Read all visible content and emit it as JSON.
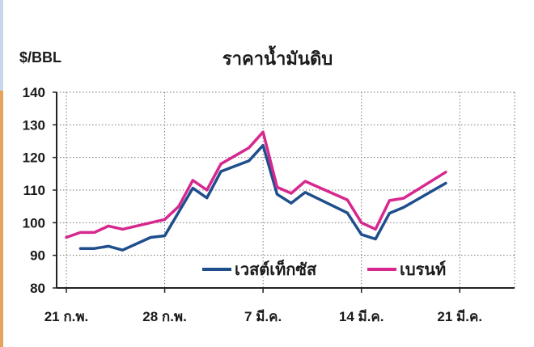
{
  "chart_data": {
    "type": "line",
    "title": "ราคาน้ำมันดิบ",
    "ylabel": "$/BBL",
    "xlabel": "",
    "ylim": [
      80,
      140
    ],
    "yticks": [
      80,
      90,
      100,
      110,
      120,
      130,
      140
    ],
    "xlim": [
      0,
      30
    ],
    "xticks": [
      {
        "x": 0,
        "label": "21 ก.พ."
      },
      {
        "x": 7,
        "label": "28 ก.พ."
      },
      {
        "x": 14,
        "label": "7 มี.ค."
      },
      {
        "x": 21,
        "label": "14 มี.ค."
      },
      {
        "x": 28,
        "label": "21 มี.ค."
      }
    ],
    "grid": true,
    "legend_position": "bottom-center",
    "series": [
      {
        "name": "เวสต์เท็กซัส",
        "color": "#1f4e8c",
        "points": [
          [
            1,
            92.1
          ],
          [
            2,
            92.1
          ],
          [
            3,
            92.8
          ],
          [
            4,
            91.6
          ],
          [
            6,
            95.5
          ],
          [
            7,
            96.0
          ],
          [
            9,
            110.6
          ],
          [
            10,
            107.6
          ],
          [
            11,
            115.7
          ],
          [
            13,
            119.0
          ],
          [
            14,
            123.7
          ],
          [
            15,
            108.7
          ],
          [
            16,
            106.0
          ],
          [
            17,
            109.3
          ],
          [
            20,
            103.0
          ],
          [
            21,
            96.4
          ],
          [
            22,
            95.0
          ],
          [
            23,
            102.9
          ],
          [
            24,
            104.7
          ],
          [
            27,
            112.1
          ]
        ]
      },
      {
        "name": "เบรนท์",
        "color": "#d6288e",
        "points": [
          [
            0,
            95.5
          ],
          [
            1,
            97.0
          ],
          [
            2,
            97.0
          ],
          [
            3,
            99.0
          ],
          [
            4,
            98.0
          ],
          [
            7,
            101.0
          ],
          [
            8,
            105.0
          ],
          [
            9,
            113.0
          ],
          [
            10,
            110.0
          ],
          [
            11,
            118.0
          ],
          [
            13,
            123.0
          ],
          [
            14,
            127.8
          ],
          [
            15,
            110.9
          ],
          [
            16,
            109.0
          ],
          [
            17,
            112.7
          ],
          [
            20,
            107.0
          ],
          [
            21,
            100.0
          ],
          [
            22,
            98.0
          ],
          [
            23,
            106.8
          ],
          [
            24,
            107.5
          ],
          [
            27,
            115.5
          ]
        ]
      }
    ]
  }
}
